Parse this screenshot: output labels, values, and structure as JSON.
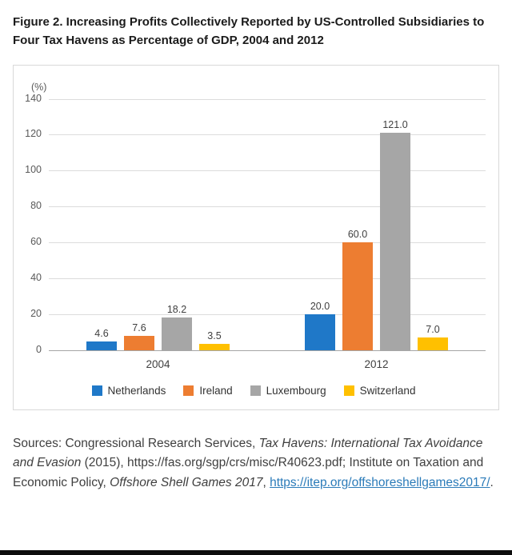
{
  "title": "Figure 2. Increasing Profits Collectively Reported by US-Controlled Subsidiaries to Four Tax Havens as Percentage of GDP, 2004 and 2012",
  "chart_data": {
    "type": "bar",
    "title": "Increasing Profits Collectively Reported by US-Controlled Subsidiaries to Four Tax Havens as Percentage of GDP, 2004 and 2012",
    "unit_label": "(%)",
    "categories": [
      "2004",
      "2012"
    ],
    "series": [
      {
        "name": "Netherlands",
        "color": "#1f78c8",
        "values": [
          4.6,
          20.0
        ]
      },
      {
        "name": "Ireland",
        "color": "#ed7d31",
        "values": [
          7.6,
          60.0
        ]
      },
      {
        "name": "Luxembourg",
        "color": "#a6a6a6",
        "values": [
          18.2,
          121.0
        ]
      },
      {
        "name": "Switzerland",
        "color": "#ffc000",
        "values": [
          3.5,
          7.0
        ]
      }
    ],
    "ylim": [
      0,
      140
    ],
    "ytick_step": 20,
    "grid": true,
    "legend_position": "bottom",
    "value_label_decimals": 1,
    "value_labels": [
      "4.6",
      "7.6",
      "18.2",
      "3.5",
      "20.0",
      "60.0",
      "121.0",
      "7.0"
    ]
  },
  "sources": {
    "segments": [
      {
        "text": "Sources: Congressional Research Services, ",
        "style": "normal"
      },
      {
        "text": "Tax Havens: International Tax Avoidance and Evasion",
        "style": "italic"
      },
      {
        "text": " (2015), https://fas.org/sgp/crs/misc/R40623.pdf; Institute on Taxation and Economic Policy, ",
        "style": "normal"
      },
      {
        "text": "Offshore Shell Games 2017",
        "style": "italic"
      },
      {
        "text": ", ",
        "style": "normal"
      },
      {
        "text": "https://itep.org/offshoreshellgames2017/",
        "style": "link"
      },
      {
        "text": ".",
        "style": "normal"
      }
    ]
  }
}
